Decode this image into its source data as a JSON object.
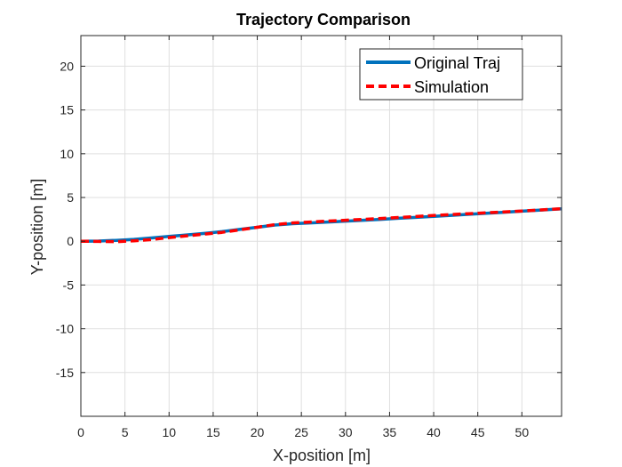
{
  "chart_data": {
    "type": "line",
    "title": "Trajectory Comparison",
    "xlabel": "X-position [m]",
    "ylabel": "Y-position [m]",
    "xlim": [
      0,
      54.5
    ],
    "ylim": [
      -20,
      23.5
    ],
    "xticks": [
      0,
      5,
      10,
      15,
      20,
      25,
      30,
      35,
      40,
      45,
      50
    ],
    "yticks": [
      -15,
      -10,
      -5,
      0,
      5,
      10,
      15,
      20
    ],
    "grid": true,
    "legend_position": "top-right",
    "series": [
      {
        "name": "Original Traj",
        "color": "#0072BD",
        "style": "solid",
        "x": [
          0,
          2,
          4,
          6,
          8,
          10,
          12,
          14,
          16,
          18,
          20,
          22,
          24,
          26,
          28,
          30,
          32,
          34,
          36,
          38,
          40,
          42,
          44,
          46,
          48,
          50,
          52,
          54.5
        ],
        "y": [
          0,
          0.02,
          0.1,
          0.22,
          0.38,
          0.55,
          0.72,
          0.9,
          1.1,
          1.35,
          1.6,
          1.85,
          2.0,
          2.1,
          2.2,
          2.3,
          2.4,
          2.5,
          2.62,
          2.73,
          2.85,
          2.96,
          3.08,
          3.2,
          3.32,
          3.44,
          3.55,
          3.7
        ]
      },
      {
        "name": "Simulation",
        "color": "#FF0000",
        "style": "dashed",
        "x": [
          0,
          2,
          4,
          6,
          8,
          10,
          12,
          14,
          16,
          18,
          20,
          22,
          24,
          26,
          28,
          30,
          32,
          34,
          36,
          38,
          40,
          42,
          44,
          46,
          48,
          50,
          52,
          54.5
        ],
        "y": [
          0,
          -0.02,
          -0.05,
          0.05,
          0.2,
          0.42,
          0.62,
          0.82,
          1.02,
          1.3,
          1.6,
          1.9,
          2.1,
          2.2,
          2.3,
          2.4,
          2.5,
          2.6,
          2.72,
          2.83,
          2.95,
          3.05,
          3.15,
          3.25,
          3.35,
          3.46,
          3.57,
          3.72
        ]
      }
    ]
  }
}
